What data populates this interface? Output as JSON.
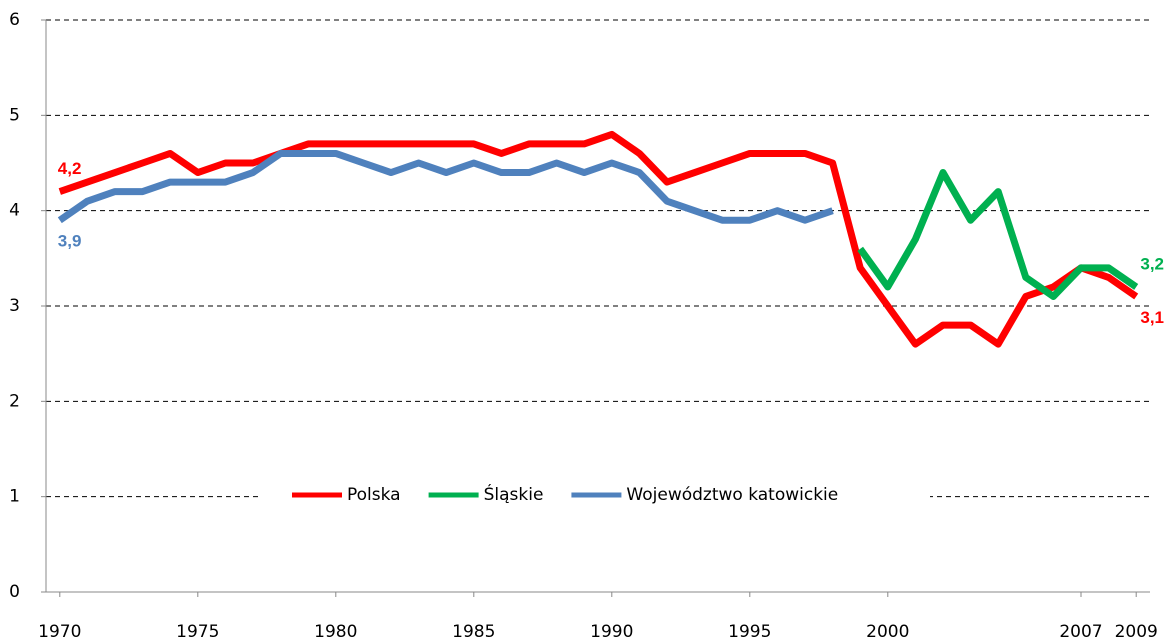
{
  "chart_data": {
    "type": "line",
    "x": [
      1970,
      1971,
      1972,
      1973,
      1974,
      1975,
      1976,
      1977,
      1978,
      1979,
      1980,
      1981,
      1982,
      1983,
      1984,
      1985,
      1986,
      1987,
      1988,
      1989,
      1990,
      1991,
      1992,
      1993,
      1994,
      1995,
      1996,
      1997,
      1998,
      1999,
      2000,
      2001,
      2002,
      2003,
      2004,
      2005,
      2006,
      2007,
      2008,
      2009
    ],
    "series": [
      {
        "name": "Polska",
        "color": "#ff0000",
        "values": [
          4.2,
          4.3,
          4.4,
          4.5,
          4.6,
          4.4,
          4.5,
          4.5,
          4.6,
          4.7,
          4.7,
          4.7,
          4.7,
          4.7,
          4.7,
          4.7,
          4.6,
          4.7,
          4.7,
          4.7,
          4.8,
          4.6,
          4.3,
          4.4,
          4.5,
          4.6,
          4.6,
          4.6,
          4.5,
          3.4,
          3.0,
          2.6,
          2.8,
          2.8,
          2.6,
          3.1,
          3.2,
          3.4,
          3.3,
          3.1
        ],
        "value_labels": [
          "4,2",
          null,
          null,
          null,
          null,
          null,
          null,
          null,
          null,
          null,
          null,
          null,
          null,
          null,
          null,
          null,
          null,
          null,
          null,
          null,
          null,
          null,
          null,
          null,
          null,
          null,
          null,
          null,
          null,
          null,
          null,
          null,
          null,
          null,
          null,
          null,
          null,
          null,
          null,
          "3,1"
        ]
      },
      {
        "name": "Śląskie",
        "color": "#00b050",
        "values": [
          null,
          null,
          null,
          null,
          null,
          null,
          null,
          null,
          null,
          null,
          null,
          null,
          null,
          null,
          null,
          null,
          null,
          null,
          null,
          null,
          null,
          null,
          null,
          null,
          null,
          null,
          null,
          null,
          null,
          3.6,
          3.2,
          3.7,
          4.4,
          3.9,
          4.2,
          3.3,
          3.1,
          3.4,
          3.4,
          3.2
        ],
        "value_labels": [
          null,
          null,
          null,
          null,
          null,
          null,
          null,
          null,
          null,
          null,
          null,
          null,
          null,
          null,
          null,
          null,
          null,
          null,
          null,
          null,
          null,
          null,
          null,
          null,
          null,
          null,
          null,
          null,
          null,
          null,
          null,
          null,
          null,
          null,
          null,
          null,
          null,
          null,
          null,
          "3,2"
        ]
      },
      {
        "name": "Województwo katowickie",
        "color": "#4f81bd",
        "values": [
          3.9,
          4.1,
          4.2,
          4.2,
          4.3,
          4.3,
          4.3,
          4.4,
          4.6,
          4.6,
          4.6,
          4.5,
          4.4,
          4.5,
          4.4,
          4.5,
          4.4,
          4.4,
          4.5,
          4.4,
          4.5,
          4.4,
          4.1,
          4.0,
          3.9,
          3.9,
          4.0,
          3.9,
          4.0,
          null,
          null,
          null,
          null,
          null,
          null,
          null,
          null,
          null,
          null,
          null
        ],
        "value_labels": [
          "3,9",
          null,
          null,
          null,
          null,
          null,
          null,
          null,
          null,
          null,
          null,
          null,
          null,
          null,
          null,
          null,
          null,
          null,
          null,
          null,
          null,
          null,
          null,
          null,
          null,
          null,
          null,
          null,
          null,
          null,
          null,
          null,
          null,
          null,
          null,
          null,
          null,
          null,
          null,
          null
        ]
      }
    ],
    "xlim": [
      1969.5,
      2009.5
    ],
    "xticks": [
      1970,
      1975,
      1980,
      1985,
      1990,
      1995,
      2000,
      2007,
      2009
    ],
    "ylim": [
      0,
      6
    ],
    "yticks": [
      0,
      1,
      2,
      3,
      4,
      5,
      6
    ],
    "grid": true,
    "legend": "bottom"
  }
}
